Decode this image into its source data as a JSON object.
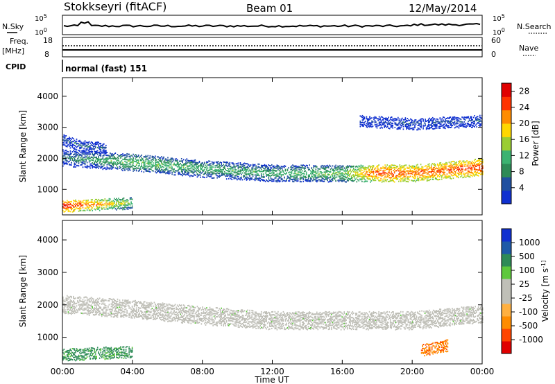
{
  "header": {
    "station": "Stokkseyri (fitACF)",
    "beam": "Beam 01",
    "date": "12/May/2014"
  },
  "top_panels": {
    "nsky_label": "N.Sky",
    "nsearch_label": "N.Search",
    "noise_ticks": [
      "10^5",
      "10^0"
    ],
    "freq_label_1": "Freq.",
    "freq_label_2": "[MHz]",
    "freq_ticks": [
      "18",
      "8"
    ],
    "nave_label": "Nave",
    "nave_ticks": [
      "60",
      "0"
    ],
    "cpid_label": "CPID",
    "cpid_value": "normal (fast) 151"
  },
  "colors": {
    "power_scale": [
      "#1030d0",
      "#2050a0",
      "#2e8b57",
      "#3cb371",
      "#9acd32",
      "#ffd700",
      "#ff8c00",
      "#ff3300",
      "#e00000"
    ],
    "velocity_scale": [
      "#e00000",
      "#ff4500",
      "#ff8c00",
      "#ffb040",
      "#c0c0b8",
      "#c0c0b8",
      "#5ec83c",
      "#2e8b57",
      "#1e5aa8",
      "#1030d0"
    ],
    "ground_scatter": "#bebeb6"
  },
  "chart_data": [
    {
      "type": "heatmap",
      "title": "",
      "xlabel": "",
      "ylabel": "Slant Range [km]",
      "x_ticks": [
        "00:00",
        "04:00",
        "08:00",
        "12:00",
        "16:00",
        "20:00",
        "00:00"
      ],
      "xlim_hours": [
        0,
        24
      ],
      "ylim_km": [
        180,
        4600
      ],
      "y_ticks": [
        1000,
        2000,
        3000,
        4000
      ],
      "colorbar_label": "Power [dB]",
      "colorbar_ticks": [
        4,
        8,
        12,
        16,
        20,
        24,
        28
      ],
      "colorbar_range": [
        0,
        30
      ],
      "regions": [
        {
          "name": "main-band",
          "start_hour": 0,
          "end_hour": 24,
          "range_km": [
            [
              0,
              2000
            ],
            [
              4,
              1850
            ],
            [
              8,
              1650
            ],
            [
              12,
              1500
            ],
            [
              16,
              1500
            ],
            [
              20,
              1500
            ],
            [
              24,
              1700
            ]
          ],
          "power_db": [
            [
              0,
              8
            ],
            [
              4,
              14
            ],
            [
              8,
              12
            ],
            [
              12,
              12
            ],
            [
              16,
              14
            ],
            [
              18,
              26
            ],
            [
              20,
              24
            ],
            [
              24,
              26
            ]
          ]
        },
        {
          "name": "upper-band",
          "start_hour": 0,
          "end_hour": 2.5,
          "range_km": [
            [
              0,
              2600
            ],
            [
              1,
              2400
            ],
            [
              2.5,
              2300
            ]
          ],
          "power_db": [
            [
              0,
              6
            ],
            [
              2.5,
              6
            ]
          ]
        },
        {
          "name": "near-range",
          "start_hour": 0,
          "end_hour": 4,
          "range_km": [
            [
              0,
              450
            ],
            [
              2,
              500
            ],
            [
              4,
              550
            ]
          ],
          "power_db": [
            [
              0,
              28
            ],
            [
              2,
              22
            ],
            [
              4,
              14
            ]
          ]
        },
        {
          "name": "far-range",
          "start_hour": 17,
          "end_hour": 24,
          "range_km": [
            [
              17,
              3200
            ],
            [
              20,
              3100
            ],
            [
              24,
              3200
            ]
          ],
          "power_db": [
            [
              17,
              4
            ],
            [
              24,
              6
            ]
          ]
        }
      ]
    },
    {
      "type": "heatmap",
      "title": "",
      "xlabel": "Time UT",
      "ylabel": "Slant Range [km]",
      "x_ticks": [
        "00:00",
        "04:00",
        "08:00",
        "12:00",
        "16:00",
        "20:00",
        "00:00"
      ],
      "xlim_hours": [
        0,
        24
      ],
      "ylim_km": [
        180,
        4600
      ],
      "y_ticks": [
        1000,
        2000,
        3000,
        4000
      ],
      "colorbar_label": "Velocity [m s^-1]",
      "colorbar_ticks": [
        "1000",
        "500",
        "100",
        "25",
        "-25",
        "-100",
        "-500",
        "-1000"
      ],
      "regions": [
        {
          "name": "ground-scatter-band",
          "start_hour": 0,
          "end_hour": 24,
          "range_km": [
            [
              0,
              2000
            ],
            [
              4,
              1850
            ],
            [
              8,
              1650
            ],
            [
              12,
              1500
            ],
            [
              16,
              1500
            ],
            [
              20,
              1500
            ],
            [
              24,
              1700
            ]
          ],
          "velocity": 0
        },
        {
          "name": "near-range-positive",
          "start_hour": 0,
          "end_hour": 4,
          "range_km": [
            [
              0,
              450
            ],
            [
              4,
              550
            ]
          ],
          "velocity": 150
        },
        {
          "name": "late-negative",
          "start_hour": 20.5,
          "end_hour": 22,
          "range_km": [
            [
              20.5,
              600
            ],
            [
              22,
              750
            ]
          ],
          "velocity": -200
        }
      ]
    }
  ]
}
